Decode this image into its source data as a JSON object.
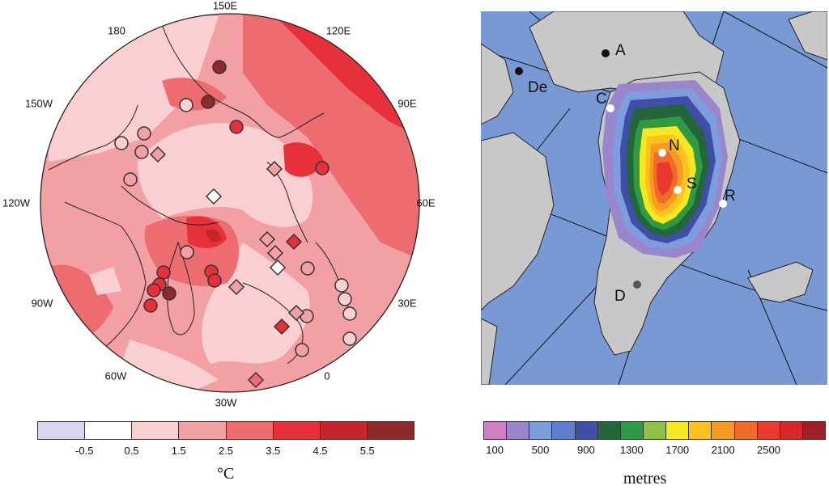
{
  "left_map": {
    "longitude_labels": {
      "lon_150E": "150E",
      "lon_120E": "120E",
      "lon_90E": "90E",
      "lon_60E": "60E",
      "lon_30E": "30E",
      "lon_0": "0",
      "lon_30W": "30W",
      "lon_60W": "60W",
      "lon_90W": "90W",
      "lon_120W": "120W",
      "lon_150W": "150W",
      "lon_180": "180"
    },
    "colorbar": {
      "colors": [
        "#d8d6ee",
        "#ffffff",
        "#f9cfd1",
        "#f2a0a3",
        "#ec6c70",
        "#e6303a",
        "#c4262e",
        "#8e2a2a"
      ],
      "tick_labels": [
        "-0.5",
        "0.5",
        "1.5",
        "2.5",
        "3.5",
        "4.5",
        "5.5"
      ],
      "unit": "°C"
    },
    "markers": {
      "circle_colors": [
        "#f9cfd1",
        "#f2a0a3",
        "#ec6c70",
        "#e6303a",
        "#c4262e",
        "#8e2a2a"
      ],
      "diamond_colors": [
        "#ffffff",
        "#f2a0a3",
        "#ec6c70",
        "#e6303a"
      ]
    }
  },
  "right_map": {
    "site_labels": {
      "A": "A",
      "De": "De",
      "C": "C",
      "N": "N",
      "S": "S",
      "R": "R",
      "D": "D"
    },
    "colorbar": {
      "colors": [
        "#cf7fc2",
        "#9a86cc",
        "#7e9ddc",
        "#5e7fcf",
        "#3f4fa8",
        "#23663a",
        "#2e9a44",
        "#8fc048",
        "#f6e820",
        "#fbc21e",
        "#f79a24",
        "#ef6b2a",
        "#e83a2f",
        "#d8262b",
        "#9e1f25"
      ],
      "tick_labels": [
        "100",
        "500",
        "900",
        "1300",
        "1700",
        "2100",
        "2500"
      ],
      "unit": "metres"
    }
  }
}
